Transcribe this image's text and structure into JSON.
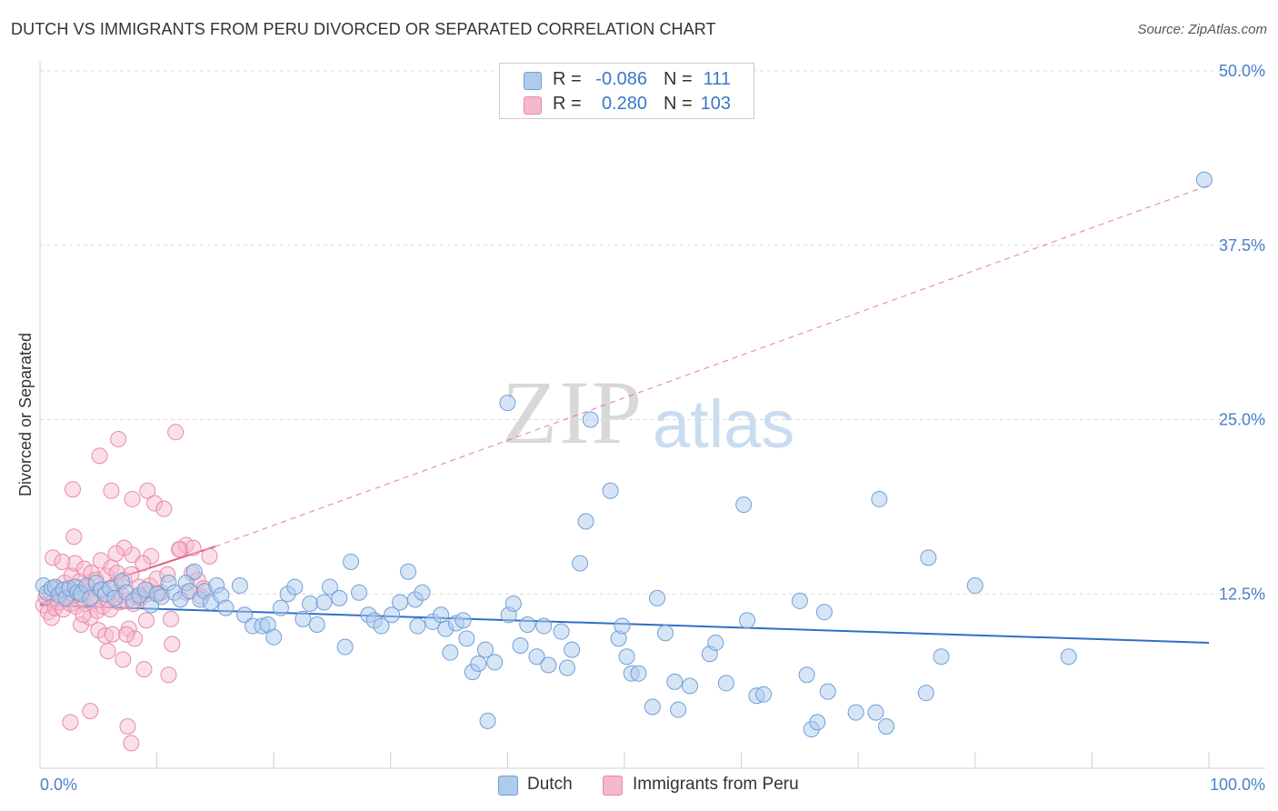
{
  "header": {
    "title": "DUTCH VS IMMIGRANTS FROM PERU DIVORCED OR SEPARATED CORRELATION CHART",
    "source": "Source: ZipAtlas.com"
  },
  "legend": {
    "rows": [
      {
        "r_label": "R =",
        "r_value": "-0.086",
        "n_label": "N =",
        "n_value": "111",
        "color": "#aecbee"
      },
      {
        "r_label": "R =",
        "r_value": "0.280",
        "n_label": "N =",
        "n_value": "103",
        "color": "#f6b8cb"
      }
    ]
  },
  "bottom_legend": {
    "dutch": "Dutch",
    "peru": "Immigrants from Peru"
  },
  "watermark": {
    "zip": "ZIP",
    "atlas": "atlas"
  },
  "colors": {
    "dutch_fill": "#aecbee",
    "dutch_stroke": "#6f9fd8",
    "dutch_line": "#2f6fc6",
    "peru_fill": "#f6b8cb",
    "peru_stroke": "#e88aa9",
    "peru_line": "#e05c8a",
    "grid": "#d9d9d9",
    "tick_text": "#4a7fc8"
  },
  "chart_data": {
    "type": "scatter",
    "title": "DUTCH VS IMMIGRANTS FROM PERU DIVORCED OR SEPARATED CORRELATION CHART",
    "xlabel": "",
    "ylabel": "Divorced or Separated",
    "xlim": [
      0,
      100
    ],
    "ylim": [
      0,
      50
    ],
    "x_tick_labels": [
      "0.0%",
      "100.0%"
    ],
    "y_ticks": [
      12.5,
      25.0,
      37.5,
      50.0
    ],
    "y_tick_labels": [
      "12.5%",
      "25.0%",
      "37.5%",
      "50.0%"
    ],
    "grid": true,
    "legend_position": "top-center",
    "series": [
      {
        "name": "Dutch",
        "trend": {
          "x": [
            0,
            100
          ],
          "y": [
            11.7,
            9.0
          ],
          "style": "solid"
        },
        "points": [
          [
            0.3,
            13.1
          ],
          [
            0.6,
            12.6
          ],
          [
            1,
            12.9
          ],
          [
            1.3,
            13.0
          ],
          [
            1.6,
            12.4
          ],
          [
            2,
            12.8
          ],
          [
            2.2,
            12.2
          ],
          [
            2.5,
            12.9
          ],
          [
            3,
            13.0
          ],
          [
            3.2,
            12.6
          ],
          [
            3.5,
            12.5
          ],
          [
            4,
            13.1
          ],
          [
            4.3,
            12.2
          ],
          [
            4.8,
            13.3
          ],
          [
            5.2,
            12.8
          ],
          [
            5.6,
            12.5
          ],
          [
            6,
            12.9
          ],
          [
            6.4,
            12.2
          ],
          [
            7,
            13.4
          ],
          [
            7.4,
            12.6
          ],
          [
            8,
            12.0
          ],
          [
            8.5,
            12.4
          ],
          [
            9.0,
            12.8
          ],
          [
            9.5,
            11.7
          ],
          [
            10.0,
            12.5
          ],
          [
            10.4,
            12.3
          ],
          [
            11,
            13.3
          ],
          [
            11.5,
            12.6
          ],
          [
            12,
            12.1
          ],
          [
            12.5,
            13.3
          ],
          [
            12.8,
            12.7
          ],
          [
            13.2,
            14.1
          ],
          [
            13.7,
            12.1
          ],
          [
            14.1,
            12.7
          ],
          [
            14.6,
            11.9
          ],
          [
            15.1,
            13.1
          ],
          [
            15.5,
            12.4
          ],
          [
            15.9,
            11.5
          ],
          [
            17.1,
            13.1
          ],
          [
            17.5,
            11.0
          ],
          [
            18.2,
            10.2
          ],
          [
            19,
            10.2
          ],
          [
            19.5,
            10.3
          ],
          [
            20,
            9.4
          ],
          [
            20.6,
            11.5
          ],
          [
            21.2,
            12.5
          ],
          [
            21.8,
            13.0
          ],
          [
            22.5,
            10.7
          ],
          [
            23.1,
            11.8
          ],
          [
            23.7,
            10.3
          ],
          [
            24.3,
            11.9
          ],
          [
            24.8,
            13.0
          ],
          [
            25.6,
            12.2
          ],
          [
            26.1,
            8.7
          ],
          [
            26.6,
            14.8
          ],
          [
            27.3,
            12.6
          ],
          [
            28.1,
            11.0
          ],
          [
            28.6,
            10.6
          ],
          [
            29.2,
            10.2
          ],
          [
            30.1,
            11.0
          ],
          [
            30.8,
            11.9
          ],
          [
            31.5,
            14.1
          ],
          [
            32.1,
            12.1
          ],
          [
            32.3,
            10.2
          ],
          [
            32.7,
            12.6
          ],
          [
            33.6,
            10.5
          ],
          [
            34.3,
            11.0
          ],
          [
            34.7,
            10.0
          ],
          [
            35.1,
            8.3
          ],
          [
            35.6,
            10.4
          ],
          [
            36.2,
            10.6
          ],
          [
            36.5,
            9.3
          ],
          [
            37,
            6.9
          ],
          [
            37.5,
            7.5
          ],
          [
            38.1,
            8.5
          ],
          [
            38.3,
            3.4
          ],
          [
            38.9,
            7.6
          ],
          [
            40.1,
            11.0
          ],
          [
            40.5,
            11.8
          ],
          [
            41.1,
            8.8
          ],
          [
            41.7,
            10.3
          ],
          [
            42.5,
            8.0
          ],
          [
            43.1,
            10.2
          ],
          [
            43.5,
            7.4
          ],
          [
            44.6,
            9.8
          ],
          [
            45.1,
            7.2
          ],
          [
            45.5,
            8.5
          ],
          [
            46.2,
            14.7
          ],
          [
            48.8,
            19.9
          ],
          [
            49.5,
            9.3
          ],
          [
            49.8,
            10.2
          ],
          [
            50.2,
            8.0
          ],
          [
            50.6,
            6.8
          ],
          [
            51.2,
            6.8
          ],
          [
            52.4,
            4.4
          ],
          [
            52.8,
            12.2
          ],
          [
            53.5,
            9.7
          ],
          [
            54.3,
            6.2
          ],
          [
            54.6,
            4.2
          ],
          [
            55.6,
            5.9
          ],
          [
            57.3,
            8.2
          ],
          [
            57.8,
            9.0
          ],
          [
            58.7,
            6.1
          ],
          [
            60.2,
            18.9
          ],
          [
            60.5,
            10.6
          ],
          [
            61.3,
            5.2
          ],
          [
            61.9,
            5.3
          ],
          [
            65,
            12.0
          ],
          [
            65.6,
            6.7
          ],
          [
            66,
            2.8
          ],
          [
            66.5,
            3.3
          ],
          [
            67.1,
            11.2
          ],
          [
            67.4,
            5.5
          ],
          [
            69.8,
            4.0
          ],
          [
            71.5,
            4.0
          ],
          [
            71.8,
            19.3
          ],
          [
            72.4,
            3.0
          ],
          [
            76,
            15.1
          ],
          [
            75.8,
            5.4
          ],
          [
            77.1,
            8.0
          ],
          [
            80,
            13.1
          ],
          [
            88,
            8.0
          ],
          [
            40,
            26.2
          ],
          [
            46.7,
            17.7
          ],
          [
            47.1,
            25.0
          ],
          [
            99.6,
            42.2
          ]
        ]
      },
      {
        "name": "Immigrants from Peru",
        "trend": {
          "x": [
            0,
            15
          ],
          "y": [
            11.8,
            15.9
          ],
          "style": "solid",
          "dashed_extension": {
            "x": [
              15,
              100
            ],
            "y": [
              15.9,
              41.8
            ]
          }
        },
        "points": [
          [
            0.3,
            11.7
          ],
          [
            0.5,
            12.3
          ],
          [
            0.7,
            11.2
          ],
          [
            0.9,
            12.6
          ],
          [
            1.0,
            10.8
          ],
          [
            1.2,
            12.0
          ],
          [
            1.3,
            11.5
          ],
          [
            1.5,
            12.9
          ],
          [
            1.6,
            11.9
          ],
          [
            1.8,
            12.4
          ],
          [
            2.0,
            11.4
          ],
          [
            2.1,
            13.3
          ],
          [
            2.3,
            12.7
          ],
          [
            2.4,
            12.1
          ],
          [
            2.6,
            11.8
          ],
          [
            2.7,
            13.8
          ],
          [
            2.9,
            12.4
          ],
          [
            3.0,
            14.7
          ],
          [
            3.1,
            11.6
          ],
          [
            3.3,
            12.9
          ],
          [
            3.4,
            13.4
          ],
          [
            3.5,
            10.3
          ],
          [
            3.6,
            12.2
          ],
          [
            3.8,
            14.3
          ],
          [
            3.9,
            11.8
          ],
          [
            4.0,
            12.6
          ],
          [
            4.1,
            13.0
          ],
          [
            4.3,
            10.8
          ],
          [
            4.4,
            14.0
          ],
          [
            4.5,
            12.3
          ],
          [
            4.7,
            12.0
          ],
          [
            4.8,
            13.5
          ],
          [
            4.9,
            11.3
          ],
          [
            5.0,
            9.9
          ],
          [
            5.2,
            14.9
          ],
          [
            5.3,
            12.8
          ],
          [
            5.4,
            11.6
          ],
          [
            5.6,
            9.5
          ],
          [
            5.7,
            13.8
          ],
          [
            5.8,
            12.1
          ],
          [
            6.0,
            11.4
          ],
          [
            6.1,
            14.4
          ],
          [
            6.2,
            9.6
          ],
          [
            6.4,
            12.6
          ],
          [
            6.5,
            13.2
          ],
          [
            6.6,
            14.0
          ],
          [
            6.8,
            11.9
          ],
          [
            7.0,
            12.4
          ],
          [
            7.1,
            7.8
          ],
          [
            7.2,
            13.5
          ],
          [
            7.4,
            12.0
          ],
          [
            7.6,
            10.0
          ],
          [
            7.8,
            13.9
          ],
          [
            7.9,
            15.3
          ],
          [
            8.0,
            11.8
          ],
          [
            8.1,
            9.3
          ],
          [
            8.3,
            12.3
          ],
          [
            8.5,
            13.0
          ],
          [
            8.6,
            12.2
          ],
          [
            8.9,
            7.1
          ],
          [
            9.1,
            10.6
          ],
          [
            9.2,
            12.5
          ],
          [
            9.4,
            13.1
          ],
          [
            9.5,
            15.2
          ],
          [
            10.0,
            13.6
          ],
          [
            10.4,
            12.6
          ],
          [
            11,
            6.7
          ],
          [
            11.3,
            8.9
          ],
          [
            12.0,
            15.7
          ],
          [
            12.5,
            12.6
          ],
          [
            13.0,
            14.0
          ],
          [
            13.5,
            13.5
          ],
          [
            14.0,
            12.9
          ],
          [
            14.5,
            15.2
          ],
          [
            2.6,
            3.3
          ],
          [
            2.8,
            20.0
          ],
          [
            2.9,
            16.6
          ],
          [
            5.1,
            22.4
          ],
          [
            6.1,
            19.9
          ],
          [
            6.7,
            23.6
          ],
          [
            7.2,
            15.8
          ],
          [
            7.9,
            19.3
          ],
          [
            9.2,
            19.9
          ],
          [
            9.8,
            19.0
          ],
          [
            10.6,
            18.6
          ],
          [
            11.6,
            24.1
          ],
          [
            10.1,
            12.5
          ],
          [
            11.2,
            10.7
          ],
          [
            4.3,
            4.1
          ],
          [
            7.5,
            3.0
          ],
          [
            7.8,
            1.8
          ],
          [
            7.4,
            9.6
          ],
          [
            5.8,
            8.4
          ],
          [
            6.5,
            15.4
          ],
          [
            12.5,
            16.0
          ],
          [
            13.8,
            12.3
          ],
          [
            1.1,
            15.1
          ],
          [
            1.9,
            14.8
          ],
          [
            3.7,
            11.0
          ],
          [
            8.8,
            14.7
          ],
          [
            10.9,
            13.9
          ],
          [
            11.9,
            15.7
          ],
          [
            13.1,
            15.8
          ]
        ]
      }
    ]
  }
}
